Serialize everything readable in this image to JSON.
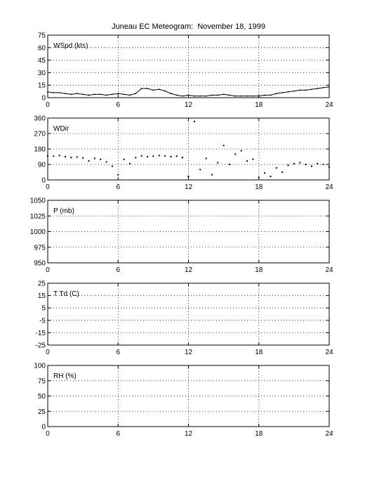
{
  "title": "Juneau EC Meteogram:  November 18, 1999",
  "colors": {
    "background": "#ffffff",
    "ink": "#000000"
  },
  "chart_data": [
    {
      "type": "line",
      "panel": "wspd",
      "ylabel_inside": "WSpd (kts)",
      "xlim": [
        0,
        24
      ],
      "ylim": [
        0,
        75
      ],
      "xticks": [
        0,
        6,
        12,
        18,
        24
      ],
      "yticks": [
        0,
        15,
        30,
        45,
        60,
        75
      ],
      "grid": true,
      "x": [
        0,
        0.5,
        1,
        1.5,
        2,
        2.5,
        3,
        3.5,
        4,
        4.5,
        5,
        5.5,
        6,
        6.5,
        7,
        7.5,
        8,
        8.5,
        9,
        9.5,
        10,
        10.5,
        11,
        11.5,
        12,
        12.5,
        13,
        13.5,
        14,
        14.5,
        15,
        15.5,
        16,
        16.5,
        17,
        17.5,
        18,
        18.5,
        19,
        19.5,
        20,
        20.5,
        21,
        21.5,
        22,
        22.5,
        23,
        23.5,
        24
      ],
      "y": [
        7,
        6,
        6,
        5,
        4,
        5,
        4,
        3,
        4,
        4,
        3,
        4,
        5,
        4,
        3,
        5,
        11,
        11,
        9,
        10,
        8,
        5,
        3,
        2,
        3,
        2,
        2,
        2,
        3,
        3,
        4,
        3,
        2,
        2,
        2,
        2,
        2,
        3,
        3,
        5,
        6,
        7,
        8,
        9,
        9,
        10,
        11,
        12,
        13
      ]
    },
    {
      "type": "scatter",
      "panel": "wdir",
      "ylabel_inside": "WDir",
      "xlim": [
        0,
        24
      ],
      "ylim": [
        0,
        360
      ],
      "xticks": [
        0,
        6,
        12,
        18,
        24
      ],
      "yticks": [
        0,
        90,
        180,
        270,
        360
      ],
      "grid": true,
      "x": [
        0,
        0.5,
        1,
        1.5,
        2,
        2.5,
        3,
        3.5,
        4,
        4.5,
        5,
        5.5,
        6,
        6.5,
        7,
        7.5,
        8,
        8.5,
        9,
        9.5,
        10,
        10.5,
        11,
        11.5,
        12,
        12.5,
        13,
        13.5,
        14,
        14.5,
        15,
        15.5,
        16,
        16.5,
        17,
        17.5,
        18,
        18.5,
        19,
        19.5,
        20,
        20.5,
        21,
        21.5,
        22,
        22.5,
        23,
        23.5,
        24
      ],
      "y": [
        140,
        138,
        142,
        135,
        130,
        133,
        128,
        110,
        125,
        120,
        105,
        80,
        30,
        120,
        95,
        130,
        140,
        135,
        138,
        142,
        140,
        136,
        138,
        130,
        20,
        340,
        60,
        125,
        30,
        100,
        200,
        90,
        150,
        170,
        110,
        120,
        15,
        40,
        20,
        70,
        45,
        85,
        95,
        100,
        90,
        80,
        95,
        90,
        75
      ]
    },
    {
      "type": "line",
      "panel": "pressure",
      "ylabel_inside": "P (mb)",
      "xlim": [
        0,
        24
      ],
      "ylim": [
        950,
        1050
      ],
      "xticks": [
        0,
        6,
        12,
        18,
        24
      ],
      "yticks": [
        950,
        975,
        1000,
        1025,
        1050
      ],
      "grid": true,
      "x": [],
      "y": []
    },
    {
      "type": "line",
      "panel": "temperature",
      "ylabel_inside": "T Td (C)",
      "xlim": [
        0,
        24
      ],
      "ylim": [
        -25,
        25
      ],
      "xticks": [
        0,
        6,
        12,
        18,
        24
      ],
      "yticks": [
        -25,
        -15,
        -5,
        5,
        15,
        25
      ],
      "grid": true,
      "x": [],
      "y": []
    },
    {
      "type": "line",
      "panel": "rh",
      "ylabel_inside": "RH (%)",
      "xlim": [
        0,
        24
      ],
      "ylim": [
        0,
        100
      ],
      "xticks": [
        0,
        6,
        12,
        18,
        24
      ],
      "yticks": [
        0,
        25,
        50,
        75,
        100
      ],
      "grid": true,
      "x": [],
      "y": []
    }
  ]
}
